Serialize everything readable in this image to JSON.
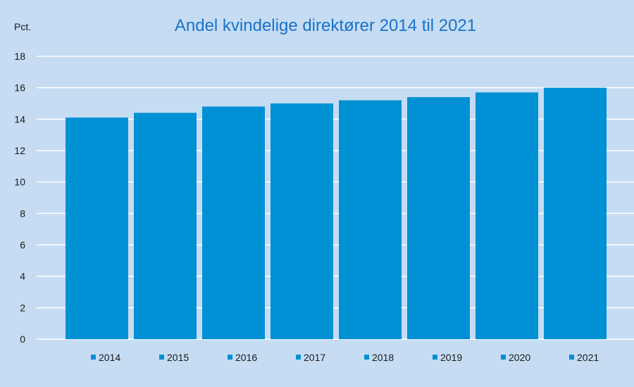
{
  "chart_data": {
    "type": "bar",
    "title": "Andel kvindelige direktører 2014 til 2021",
    "ylabel": "Pct.",
    "xlabel": "",
    "categories": [
      "2014",
      "2015",
      "2016",
      "2017",
      "2018",
      "2019",
      "2020",
      "2021"
    ],
    "values": [
      14.1,
      14.4,
      14.8,
      15.0,
      15.2,
      15.4,
      15.7,
      16.0
    ],
    "ylim": [
      0,
      18
    ],
    "yticks": [
      "0",
      "2",
      "4",
      "6",
      "8",
      "10",
      "12",
      "14",
      "16",
      "18"
    ],
    "grid": true,
    "legend_position": "bottom",
    "bar_color": "#0090d4",
    "background_color": "#c5dcf2",
    "title_color": "#1a73c8"
  }
}
